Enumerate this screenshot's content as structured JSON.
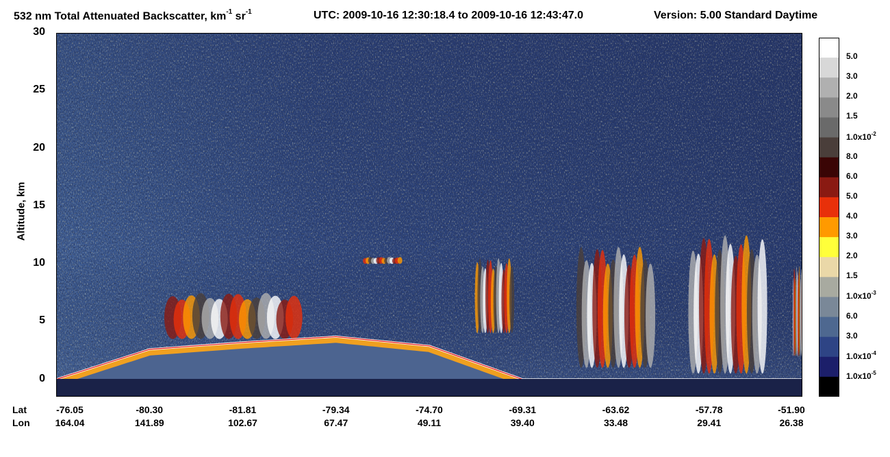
{
  "title": {
    "main": "532 nm Total Attenuated Backscatter, km",
    "exp1": "-1",
    "unit_sr": " sr",
    "exp2": "-1",
    "utc": "UTC:  2009-10-16 12:30:18.4  to  2009-10-16 12:43:47.0",
    "version": "Version: 5.00  Standard  Daytime"
  },
  "chart_data": {
    "type": "heatmap",
    "ylabel": "Altitude, km",
    "ylim": [
      -1.5,
      30
    ],
    "yticks": [
      "0",
      "5",
      "10",
      "15",
      "20",
      "25",
      "30"
    ],
    "ytick_values": [
      0,
      5,
      10,
      15,
      20,
      25,
      30
    ],
    "x_axis_rows": [
      {
        "name": "Lat",
        "values": [
          "-76.05",
          "-80.30",
          "-81.81",
          "-79.34",
          "-74.70",
          "-69.31",
          "-63.62",
          "-57.78",
          "-51.90"
        ]
      },
      {
        "name": "Lon",
        "values": [
          "164.04",
          "141.89",
          "102.67",
          "67.47",
          "49.11",
          "39.40",
          "33.48",
          "29.41",
          "26.38"
        ]
      }
    ],
    "surface_altitude_km_by_tick": [
      0.0,
      2.6,
      3.2,
      3.7,
      2.9,
      0.0,
      0.0,
      0.0,
      0.0
    ],
    "cloud_layers": [
      {
        "from_tick": 1.2,
        "to_tick": 2.6,
        "base_km": 3.5,
        "top_km": 7.5
      },
      {
        "from_tick": 3.3,
        "to_tick": 3.7,
        "base_km": 10.0,
        "top_km": 10.6
      },
      {
        "from_tick": 4.5,
        "to_tick": 4.9,
        "base_km": 4.0,
        "top_km": 10.5
      },
      {
        "from_tick": 5.6,
        "to_tick": 6.4,
        "base_km": 1.0,
        "top_km": 11.5
      },
      {
        "from_tick": 6.8,
        "to_tick": 7.6,
        "base_km": 0.5,
        "top_km": 12.5
      },
      {
        "from_tick": 7.9,
        "to_tick": 8.0,
        "base_km": 2.0,
        "top_km": 9.8
      }
    ],
    "colorbar": {
      "labels": [
        {
          "text": "5.0",
          "exp": ""
        },
        {
          "text": "3.0",
          "exp": ""
        },
        {
          "text": "2.0",
          "exp": ""
        },
        {
          "text": "1.5",
          "exp": ""
        },
        {
          "text": "1.0x10",
          "exp": "-2"
        },
        {
          "text": "8.0",
          "exp": ""
        },
        {
          "text": "6.0",
          "exp": ""
        },
        {
          "text": "5.0",
          "exp": ""
        },
        {
          "text": "4.0",
          "exp": ""
        },
        {
          "text": "3.0",
          "exp": ""
        },
        {
          "text": "2.0",
          "exp": ""
        },
        {
          "text": "1.5",
          "exp": ""
        },
        {
          "text": "1.0x10",
          "exp": "-3"
        },
        {
          "text": "6.0",
          "exp": ""
        },
        {
          "text": "3.0",
          "exp": ""
        },
        {
          "text": "1.0x10",
          "exp": "-4"
        },
        {
          "text": "1.0x10",
          "exp": "-5"
        }
      ],
      "colors": [
        "#ffffff",
        "#d8d8d8",
        "#b0b0b0",
        "#8a8a8a",
        "#6a6a6a",
        "#4a3e3a",
        "#3a0505",
        "#8a1a12",
        "#e8300a",
        "#ff9a00",
        "#ffff3a",
        "#ead8a8",
        "#a8aaa0",
        "#7a8898",
        "#4e6890",
        "#2e4485",
        "#1c1f6a",
        "#000000"
      ]
    }
  }
}
